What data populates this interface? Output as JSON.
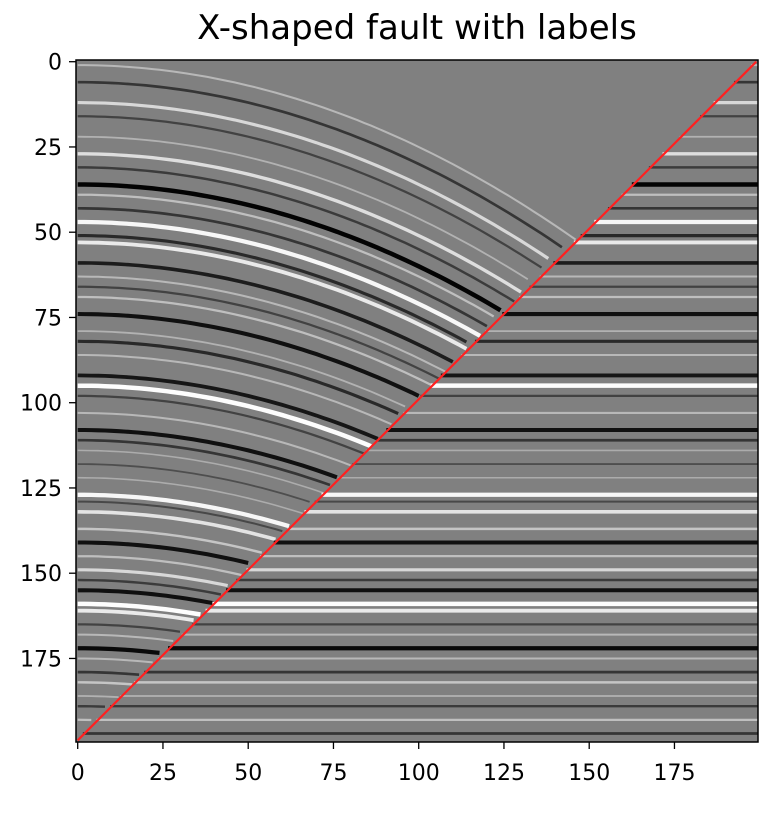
{
  "chart_data": {
    "type": "heatmap",
    "title": "X-shaped fault with labels",
    "xlabel": "",
    "ylabel": "",
    "image_shape": [
      200,
      200
    ],
    "colormap": "gray",
    "xlim": [
      0,
      199
    ],
    "ylim": [
      199,
      0
    ],
    "x_ticks": [
      0,
      25,
      50,
      75,
      100,
      125,
      150,
      175
    ],
    "y_ticks": [
      0,
      25,
      50,
      75,
      100,
      125,
      150,
      175
    ],
    "fault_line": {
      "color": "#ff2020",
      "points": [
        [
          0,
          199
        ],
        [
          199,
          0
        ]
      ]
    },
    "reflectors": [
      {
        "depth": 1,
        "amp": 0.45
      },
      {
        "depth": 6,
        "amp": -0.6
      },
      {
        "depth": 12,
        "amp": 0.7
      },
      {
        "depth": 16,
        "amp": -0.5
      },
      {
        "depth": 22,
        "amp": 0.4
      },
      {
        "depth": 27,
        "amp": 0.75
      },
      {
        "depth": 31,
        "amp": -0.55
      },
      {
        "depth": 36,
        "amp": -1.0
      },
      {
        "depth": 39,
        "amp": 0.5
      },
      {
        "depth": 43,
        "amp": -0.6
      },
      {
        "depth": 47,
        "amp": 0.95
      },
      {
        "depth": 51,
        "amp": -0.7
      },
      {
        "depth": 53,
        "amp": 0.85
      },
      {
        "depth": 59,
        "amp": -0.8
      },
      {
        "depth": 63,
        "amp": 0.45
      },
      {
        "depth": 66,
        "amp": -0.5
      },
      {
        "depth": 69,
        "amp": 0.5
      },
      {
        "depth": 74,
        "amp": -0.9
      },
      {
        "depth": 79,
        "amp": 0.4
      },
      {
        "depth": 82,
        "amp": -0.7
      },
      {
        "depth": 86,
        "amp": 0.45
      },
      {
        "depth": 92,
        "amp": -0.85
      },
      {
        "depth": 95,
        "amp": 1.0
      },
      {
        "depth": 98,
        "amp": -0.5
      },
      {
        "depth": 103,
        "amp": 0.45
      },
      {
        "depth": 108,
        "amp": -0.9
      },
      {
        "depth": 111,
        "amp": -0.6
      },
      {
        "depth": 114,
        "amp": 0.35
      },
      {
        "depth": 118,
        "amp": -0.4
      },
      {
        "depth": 122,
        "amp": 0.35
      },
      {
        "depth": 127,
        "amp": 0.95
      },
      {
        "depth": 129,
        "amp": -0.45
      },
      {
        "depth": 132,
        "amp": 0.8
      },
      {
        "depth": 137,
        "amp": 0.55
      },
      {
        "depth": 141,
        "amp": -0.9
      },
      {
        "depth": 145,
        "amp": 0.5
      },
      {
        "depth": 149,
        "amp": 0.7
      },
      {
        "depth": 152,
        "amp": -0.55
      },
      {
        "depth": 155,
        "amp": -0.9
      },
      {
        "depth": 159,
        "amp": 1.0
      },
      {
        "depth": 161,
        "amp": 0.85
      },
      {
        "depth": 165,
        "amp": -0.5
      },
      {
        "depth": 168,
        "amp": 0.45
      },
      {
        "depth": 172,
        "amp": -0.95
      },
      {
        "depth": 175,
        "amp": 0.45
      },
      {
        "depth": 179,
        "amp": -0.6
      },
      {
        "depth": 182,
        "amp": 0.55
      },
      {
        "depth": 186,
        "amp": 0.4
      },
      {
        "depth": 189,
        "amp": -0.55
      },
      {
        "depth": 193,
        "amp": 0.5
      },
      {
        "depth": 197,
        "amp": -0.6
      }
    ]
  }
}
